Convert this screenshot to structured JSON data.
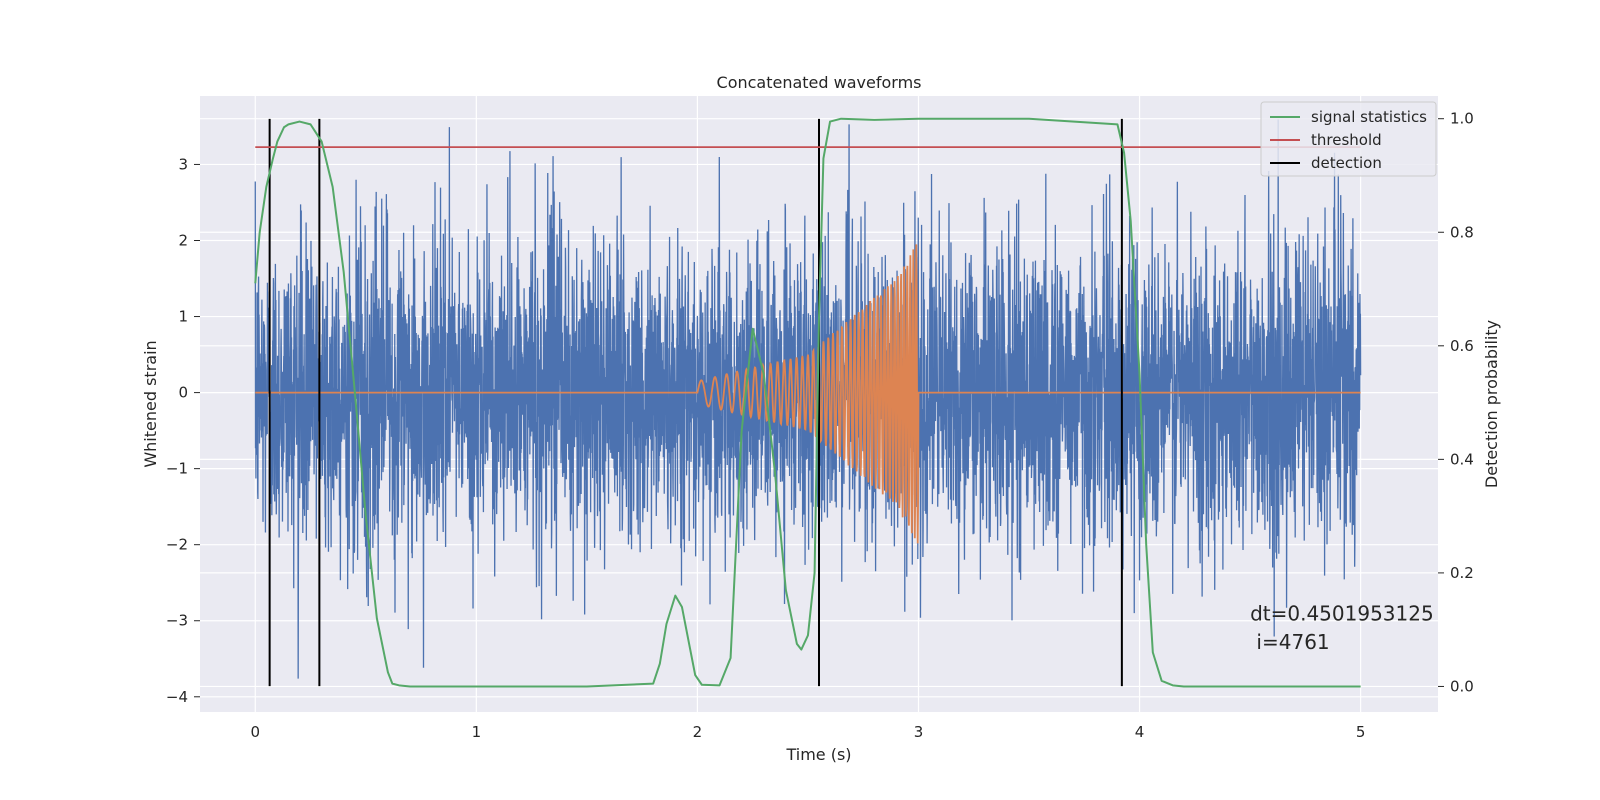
{
  "chart_data": {
    "type": "line",
    "title": "Concatenated waveforms",
    "xlabel": "Time (s)",
    "ylabel": "Whitened strain",
    "y2label": "Detection probability",
    "xlim": [
      -0.25,
      5.35
    ],
    "ylim": [
      -4.2,
      3.9
    ],
    "y2lim": [
      -0.045,
      1.04
    ],
    "xticks": [
      0,
      1,
      2,
      3,
      4,
      5
    ],
    "yticks": [
      -4,
      -3,
      -2,
      -1,
      0,
      1,
      2,
      3
    ],
    "y2ticks": [
      0.0,
      0.2,
      0.4,
      0.6,
      0.8,
      1.0
    ],
    "y2tick_labels": [
      "0.0",
      "0.2",
      "0.4",
      "0.6",
      "0.8",
      "1.0"
    ],
    "grid": true,
    "legend_position": "top-right",
    "colors": {
      "strain": "#4c72b0",
      "template": "#dd8452",
      "signal_statistics": "#55a868",
      "threshold": "#c44e52",
      "detection": "#000000",
      "plot_background": "#eaeaf2",
      "grid": "#ffffff"
    },
    "series": [
      {
        "name": "",
        "axis": "left",
        "kind": "noise",
        "x_range": [
          0,
          5
        ],
        "samples": 5000,
        "std": 1.0,
        "y_range": [
          -3.85,
          3.6
        ]
      },
      {
        "name": "",
        "axis": "left",
        "kind": "chirp",
        "x": [
          0,
          2,
          2.5,
          2.9,
          3.0,
          5
        ],
        "amplitude": [
          0,
          0.15,
          0.5,
          1.5,
          2.0,
          0
        ],
        "chirp_start": 2.0,
        "chirp_end": 3.0
      },
      {
        "name": "signal statistics",
        "axis": "right",
        "x": [
          0,
          0.02,
          0.05,
          0.08,
          0.1,
          0.13,
          0.15,
          0.2,
          0.25,
          0.3,
          0.35,
          0.4,
          0.45,
          0.5,
          0.55,
          0.6,
          0.62,
          0.65,
          0.7,
          1.0,
          1.5,
          1.8,
          1.83,
          1.86,
          1.9,
          1.93,
          1.96,
          1.99,
          2.02,
          2.1,
          2.15,
          2.2,
          2.25,
          2.3,
          2.35,
          2.4,
          2.45,
          2.47,
          2.5,
          2.53,
          2.55,
          2.57,
          2.6,
          2.65,
          2.8,
          3.0,
          3.5,
          3.9,
          3.93,
          3.96,
          4.0,
          4.03,
          4.06,
          4.1,
          4.15,
          4.2,
          4.5,
          5.0
        ],
        "y": [
          0.71,
          0.8,
          0.88,
          0.93,
          0.96,
          0.985,
          0.99,
          0.995,
          0.99,
          0.96,
          0.88,
          0.73,
          0.52,
          0.3,
          0.12,
          0.025,
          0.005,
          0.002,
          0.0,
          0.0,
          0.0,
          0.005,
          0.04,
          0.11,
          0.16,
          0.14,
          0.08,
          0.02,
          0.003,
          0.002,
          0.05,
          0.45,
          0.63,
          0.55,
          0.38,
          0.17,
          0.075,
          0.065,
          0.09,
          0.2,
          0.65,
          0.93,
          0.995,
          1.0,
          0.998,
          1.0,
          1.0,
          0.99,
          0.94,
          0.82,
          0.55,
          0.25,
          0.06,
          0.01,
          0.002,
          0.0,
          0.0,
          0.0
        ]
      },
      {
        "name": "threshold",
        "axis": "right",
        "x": [
          0,
          5
        ],
        "y": [
          0.95,
          0.95
        ]
      },
      {
        "name": "detection",
        "axis": "left",
        "kind": "vlines",
        "x": [
          0.065,
          0.29,
          2.55,
          3.92
        ],
        "y_range": [
          -3.86,
          3.6
        ]
      }
    ],
    "annotations": [
      {
        "text": "dt=0.4501953125",
        "x": 4.5,
        "y": -3.0
      },
      {
        "text": " i=4761",
        "x": 4.5,
        "y": -3.37
      }
    ]
  }
}
